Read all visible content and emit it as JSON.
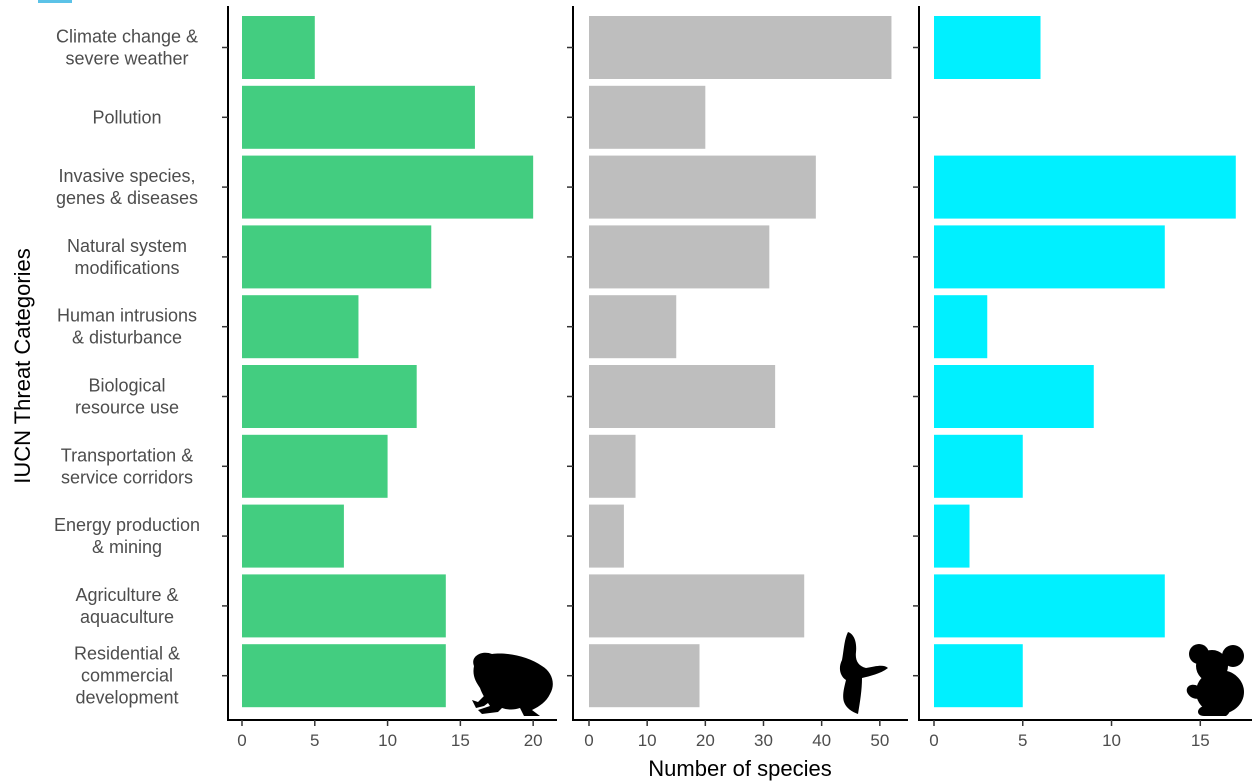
{
  "chart_data": {
    "type": "bar",
    "orientation": "horizontal",
    "layout": "three facets sharing y-axis",
    "ylabel": "IUCN Threat Categories",
    "xlabel": "Number of species",
    "categories": [
      "Climate change & severe weather",
      "Pollution",
      "Invasive species, genes & diseases",
      "Natural system modifications",
      "Human intrusions & disturbance",
      "Biological resource use",
      "Transportation & service corridors",
      "Energy production & mining",
      "Agriculture & aquaculture",
      "Residential & commercial development"
    ],
    "category_lines": [
      [
        "Climate change &",
        "severe weather"
      ],
      [
        "Pollution"
      ],
      [
        "Invasive species,",
        "genes & diseases"
      ],
      [
        "Natural system",
        "modifications"
      ],
      [
        "Human intrusions",
        "& disturbance"
      ],
      [
        "Biological",
        "resource use"
      ],
      [
        "Transportation &",
        "service corridors"
      ],
      [
        "Energy production",
        "& mining"
      ],
      [
        "Agriculture &",
        "aquaculture"
      ],
      [
        "Residential &",
        "commercial",
        "development"
      ]
    ],
    "panels": [
      {
        "silhouette": "frog-icon",
        "color": "#43cd80",
        "xlim": [
          0,
          21.5
        ],
        "xticks": [
          0,
          5,
          10,
          15,
          20
        ],
        "values": [
          5,
          16,
          20,
          13,
          8,
          12,
          10,
          7,
          14,
          14
        ]
      },
      {
        "silhouette": "bird-icon",
        "color": "#bebebe",
        "xlim": [
          0,
          54.5
        ],
        "xticks": [
          0,
          10,
          20,
          30,
          40,
          50
        ],
        "values": [
          52,
          20,
          39,
          31,
          15,
          32,
          8,
          6,
          37,
          19
        ]
      },
      {
        "silhouette": "koala-icon",
        "color": "#00f0ff",
        "xlim": [
          0,
          17.8
        ],
        "xticks": [
          0,
          5,
          10,
          15
        ],
        "values": [
          6,
          null,
          17,
          13,
          3,
          9,
          5,
          2,
          13,
          5
        ]
      }
    ],
    "grid": false,
    "legend": "none"
  }
}
